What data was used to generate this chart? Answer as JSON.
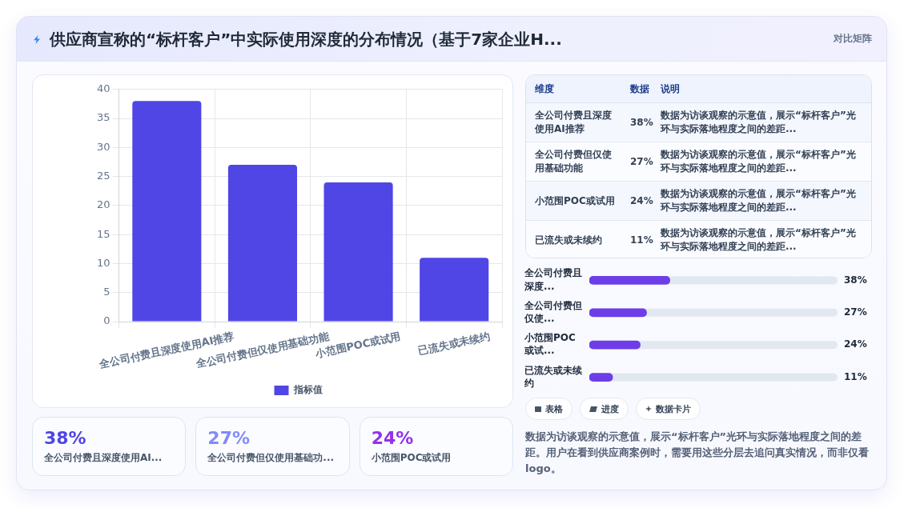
{
  "chart_data": [
    {
      "type": "bar",
      "title": "供应商宣称的“标杆客户”中实际使用深度的分布情况（基于7家企业H...",
      "annotations": [
        "对比矩阵"
      ],
      "categories": [
        "全公司付费且深度使用AI推荐",
        "全公司付费但仅使用基础功能",
        "小范围POC或试用",
        "已流失或未续约"
      ],
      "series": [
        {
          "name": "指标值",
          "color": "#4f46e5",
          "values": [
            38,
            27,
            24,
            11
          ]
        }
      ],
      "ylim": [
        0,
        40
      ],
      "yticks": [
        0,
        5,
        10,
        15,
        20,
        25,
        30,
        35,
        40
      ],
      "grid": true,
      "legend": "bottom"
    },
    {
      "type": "other",
      "categories": [
        "全公司付费且深度使用AI推荐",
        "全公司付费但仅使用基础功能",
        "小范围POC或试用",
        "已流失或未续约"
      ],
      "value_labels": [
        "38%",
        "27%",
        "24%",
        "11%"
      ],
      "annotations": [
        "维度",
        "数据",
        "说明",
        "数据为访谈观察的示意值，展示“标杆客户”光环与实际落地程度之间的差距...",
        "数据为访谈观察的示意值，展示“标杆客户”光环与实际落地程度之间的差距...",
        "数据为访谈观察的示意值，展示“标杆客户”光环与实际落地程度之间的差距...",
        "数据为访谈观察的示意值，展示“标杆客户”光环与实际落地程度之间的差距..."
      ]
    },
    {
      "type": "bar",
      "orientation": "horizontal",
      "categories": [
        "全公司付费且深度...",
        "全公司付费但仅使...",
        "小范围POC或试...",
        "已流失或未续约"
      ],
      "values": [
        38,
        27,
        24,
        11
      ],
      "color": "#6d3ee8",
      "value_labels": [
        "38%",
        "27%",
        "24%",
        "11%"
      ],
      "xlim": [
        0,
        117
      ],
      "tick_labels": "y"
    },
    {
      "type": "other",
      "categories": [
        "表格",
        "进度",
        "数据卡片"
      ],
      "annotations": [
        "数据为访谈观察的示意值，展示“标杆客户”光环与实际落地程度之间的差距。用户在看到供应商案例时，需要用这些分层去追问真实情况，而非仅看logo。"
      ]
    },
    {
      "type": "other",
      "categories": [
        "全公司付费且深度使用AI...",
        "全公司付费但仅使用基础功...",
        "小范围POC或试用"
      ],
      "value_labels": [
        "38%",
        "27%",
        "24%"
      ]
    }
  ]
}
